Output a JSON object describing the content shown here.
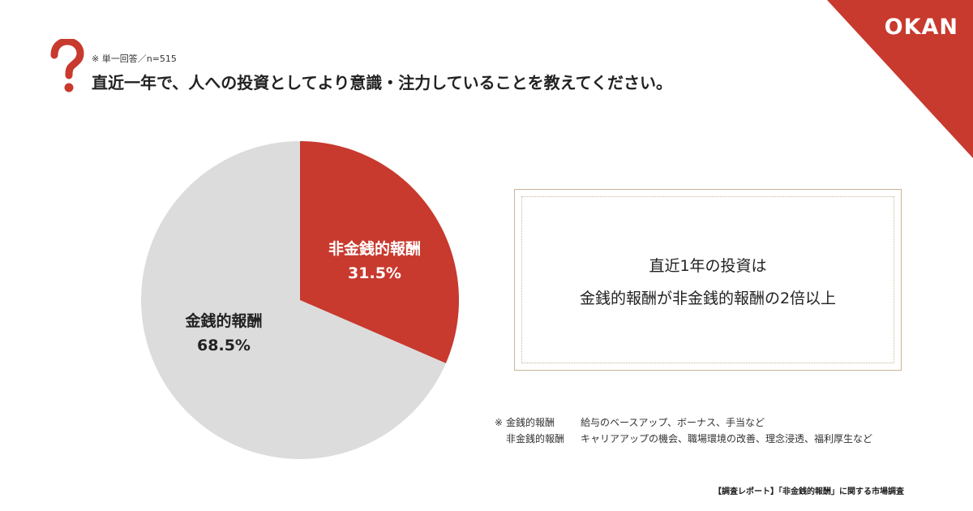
{
  "brand": {
    "logo_text": "OKAN",
    "accent_color": "#c8392e"
  },
  "header": {
    "note": "※ 単一回答／n=515",
    "question": "直近一年で、人への投資としてより意識・注力していることを教えてください。"
  },
  "chart_data": {
    "type": "pie",
    "n": 515,
    "slices": [
      {
        "label": "非金銭的報酬",
        "value": 31.5,
        "value_label": "31.5%",
        "color": "#c8392e"
      },
      {
        "label": "金銭的報酬",
        "value": 68.5,
        "value_label": "68.5%",
        "color": "#dcdcdc"
      }
    ]
  },
  "callout": {
    "line1": "直近1年の投資は",
    "line2": "金銭的報酬が非金銭的報酬の2倍以上"
  },
  "notes": [
    {
      "mark": "※",
      "term": "金銭的報酬",
      "desc": "給与のベースアップ、ボーナス、手当など"
    },
    {
      "mark": "",
      "term": "非金銭的報酬",
      "desc": "キャリアアップの機会、職場環境の改善、理念浸透、福利厚生など"
    }
  ],
  "footer": "【調査レポート】「非金銭的報酬」に関する市場調査"
}
